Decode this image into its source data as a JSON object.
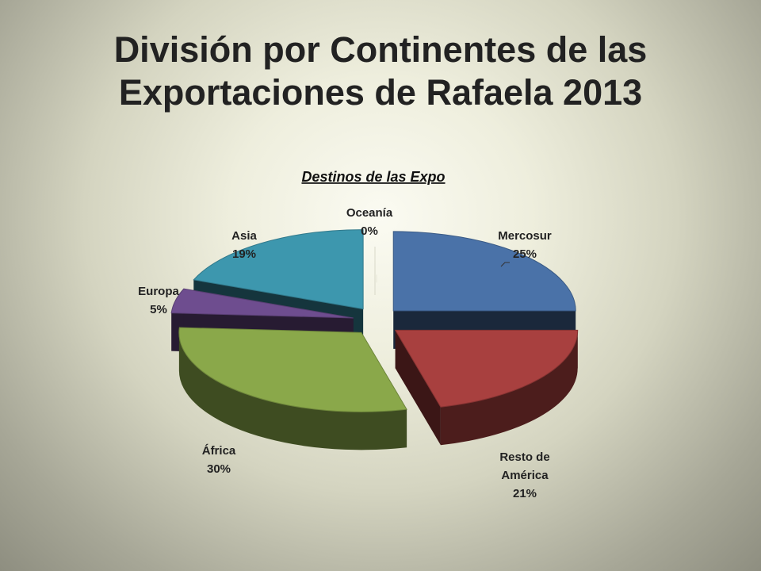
{
  "slide": {
    "title_line1": "División por Continentes de las",
    "title_line2": "Exportaciones de Rafaela 2013"
  },
  "chart_data": {
    "type": "pie",
    "title": "Destinos de las Expo",
    "style": "3d-exploded",
    "slices": [
      {
        "label": "Mercosur",
        "value": 25,
        "display": "25%",
        "color": "#4a72a8"
      },
      {
        "label": "Resto de América",
        "value": 21,
        "display": "21%",
        "color": "#a8403f"
      },
      {
        "label": "África",
        "value": 30,
        "display": "30%",
        "color": "#8aa84a"
      },
      {
        "label": "Europa",
        "value": 5,
        "display": "5%",
        "color": "#6e4d8f"
      },
      {
        "label": "Asia",
        "value": 19,
        "display": "19%",
        "color": "#3d97ae"
      },
      {
        "label": "Oceanía",
        "value": 0,
        "display": "0%",
        "color": "#d0803a"
      }
    ]
  }
}
